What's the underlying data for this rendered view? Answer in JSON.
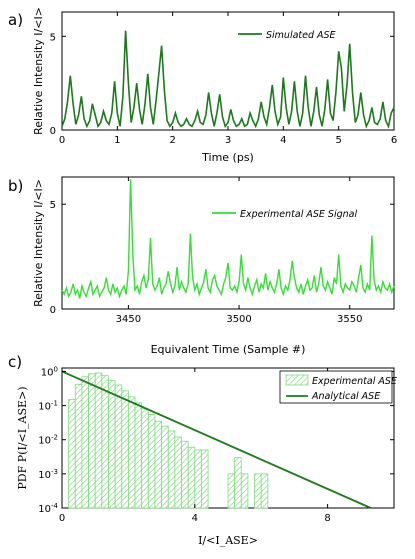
{
  "panels": [
    {
      "letter": "a)",
      "ylabel": "Relative Intensity I/<I>",
      "xlabel": "Time (ps)"
    },
    {
      "letter": "b)",
      "ylabel": "Relative Intensity I/<I>",
      "xlabel": "Equivalent Time (Sample #)"
    },
    {
      "letter": "c)",
      "ylabel": "PDF P(I/<I_ASE>)",
      "xlabel": "I/<I_ASE>"
    }
  ],
  "colors": {
    "dark_green": "#1c7a1c",
    "light_green": "#33e033",
    "hatch_green": "#7fdc7f"
  },
  "chart_data": [
    {
      "type": "line",
      "xlabel": "Time (ps)",
      "ylabel": "Relative Intensity I/<I>",
      "xlim": [
        0,
        6
      ],
      "ylim": [
        0,
        6.3
      ],
      "xticks": [
        0,
        1,
        2,
        3,
        4,
        5,
        6
      ],
      "yticks": [
        0,
        5
      ],
      "legend": "top-right",
      "series": [
        {
          "name": "Simulated ASE",
          "x": [
            0,
            0.05,
            0.1,
            0.15,
            0.2,
            0.25,
            0.3,
            0.35,
            0.4,
            0.45,
            0.5,
            0.55,
            0.6,
            0.65,
            0.7,
            0.75,
            0.8,
            0.85,
            0.9,
            0.95,
            1.0,
            1.05,
            1.1,
            1.15,
            1.2,
            1.25,
            1.3,
            1.35,
            1.4,
            1.45,
            1.5,
            1.55,
            1.6,
            1.65,
            1.7,
            1.75,
            1.8,
            1.85,
            1.9,
            1.95,
            2.0,
            2.05,
            2.1,
            2.15,
            2.2,
            2.25,
            2.3,
            2.35,
            2.4,
            2.45,
            2.5,
            2.55,
            2.6,
            2.65,
            2.7,
            2.75,
            2.8,
            2.85,
            2.9,
            2.95,
            3.0,
            3.05,
            3.1,
            3.15,
            3.2,
            3.25,
            3.3,
            3.35,
            3.4,
            3.45,
            3.5,
            3.55,
            3.6,
            3.65,
            3.7,
            3.75,
            3.8,
            3.85,
            3.9,
            3.95,
            4.0,
            4.05,
            4.1,
            4.15,
            4.2,
            4.25,
            4.3,
            4.35,
            4.4,
            4.45,
            4.5,
            4.55,
            4.6,
            4.65,
            4.7,
            4.75,
            4.8,
            4.85,
            4.9,
            4.95,
            5.0,
            5.05,
            5.1,
            5.15,
            5.2,
            5.25,
            5.3,
            5.35,
            5.4,
            5.45,
            5.5,
            5.55,
            5.6,
            5.65,
            5.7,
            5.75,
            5.8,
            5.85,
            5.9,
            5.95,
            6.0
          ],
          "y": [
            0.2,
            0.6,
            1.5,
            2.9,
            1.4,
            0.3,
            0.8,
            1.8,
            0.6,
            0.2,
            0.5,
            1.4,
            0.8,
            0.2,
            0.4,
            1.0,
            0.5,
            0.3,
            0.9,
            2.6,
            0.9,
            0.2,
            1.8,
            5.3,
            2.5,
            0.4,
            1.2,
            2.5,
            1.1,
            0.3,
            1.4,
            3.0,
            1.2,
            0.3,
            1.6,
            3.0,
            4.5,
            2.1,
            0.5,
            0.2,
            0.4,
            0.9,
            0.4,
            0.2,
            0.3,
            0.6,
            0.3,
            0.2,
            0.5,
            1.0,
            0.4,
            0.3,
            0.8,
            2.0,
            0.9,
            0.2,
            0.9,
            1.9,
            0.7,
            0.2,
            0.4,
            1.1,
            0.5,
            0.2,
            0.3,
            0.6,
            0.2,
            0.3,
            0.9,
            0.5,
            0.2,
            0.6,
            1.5,
            0.7,
            0.3,
            1.2,
            2.4,
            1.0,
            0.3,
            0.7,
            2.8,
            1.2,
            0.3,
            1.0,
            2.6,
            1.0,
            0.2,
            0.9,
            2.9,
            1.2,
            0.2,
            1.0,
            2.3,
            0.8,
            0.2,
            1.1,
            2.7,
            0.9,
            0.5,
            2.0,
            4.2,
            3.3,
            1.0,
            2.4,
            4.6,
            2.0,
            0.4,
            0.8,
            2.0,
            0.8,
            0.2,
            0.5,
            1.2,
            0.4,
            0.3,
            0.6,
            1.5,
            0.5,
            0.2,
            0.9,
            1.2
          ]
        }
      ]
    },
    {
      "type": "line",
      "xlabel": "Equivalent Time (Sample #)",
      "ylabel": "Relative Intensity I/<I>",
      "xlim": [
        3420,
        3570
      ],
      "ylim": [
        0,
        6.3
      ],
      "xticks": [
        3450,
        3500,
        3550
      ],
      "yticks": [
        0,
        5
      ],
      "legend": "top-right",
      "series": [
        {
          "name": "Experimental ASE Signal",
          "x_start": 3420,
          "x_step": 1,
          "y": [
            0.9,
            0.7,
            1.0,
            0.6,
            0.8,
            1.2,
            0.7,
            0.9,
            0.5,
            1.1,
            0.8,
            0.6,
            1.0,
            1.3,
            0.7,
            0.9,
            1.1,
            0.6,
            0.8,
            1.0,
            1.5,
            0.9,
            0.7,
            1.2,
            0.8,
            1.0,
            0.6,
            0.9,
            1.1,
            0.7,
            1.8,
            6.2,
            2.6,
            0.9,
            1.1,
            0.7,
            1.3,
            1.6,
            1.0,
            1.4,
            3.4,
            1.2,
            0.9,
            1.1,
            1.5,
            0.7,
            1.0,
            1.2,
            1.8,
            1.2,
            0.8,
            1.1,
            2.0,
            0.9,
            1.3,
            1.0,
            0.8,
            1.2,
            3.6,
            1.5,
            0.9,
            1.2,
            0.7,
            1.0,
            1.3,
            1.9,
            1.0,
            0.8,
            1.4,
            1.6,
            1.1,
            0.9,
            0.7,
            1.2,
            1.5,
            2.2,
            1.0,
            0.9,
            1.1,
            0.8,
            1.3,
            2.6,
            1.2,
            0.9,
            1.5,
            1.0,
            0.7,
            1.1,
            1.4,
            0.8,
            1.2,
            1.0,
            1.7,
            0.9,
            1.3,
            1.0,
            0.8,
            1.2,
            1.9,
            1.0,
            0.7,
            1.1,
            0.9,
            1.4,
            2.3,
            1.5,
            1.0,
            0.8,
            1.2,
            0.7,
            1.1,
            1.4,
            0.9,
            1.0,
            1.6,
            0.8,
            1.2,
            2.0,
            1.1,
            0.9,
            1.3,
            1.0,
            0.7,
            1.5,
            1.2,
            2.6,
            1.1,
            0.8,
            1.2,
            1.0,
            0.9,
            1.3,
            1.1,
            0.8,
            1.5,
            2.1,
            1.0,
            0.8,
            1.2,
            0.9,
            3.5,
            1.4,
            0.9,
            1.1,
            0.8,
            1.3,
            1.0,
            0.9,
            1.2,
            0.8,
            1.1
          ]
        }
      ]
    },
    {
      "type": "bar",
      "xlabel": "I/<I_ASE>",
      "ylabel": "PDF P(I/<I_ASE>)",
      "xlim": [
        0,
        10
      ],
      "ylim_log": [
        -4,
        0.1
      ],
      "yscale": "log",
      "xticks": [
        0,
        4,
        8
      ],
      "yticks_exp": [
        -4,
        -3,
        -2,
        -1,
        0
      ],
      "legend": "top-right",
      "histogram": {
        "name": "Experimental ASE",
        "bin_width": 0.2,
        "bins": [
          [
            0.2,
            0.15
          ],
          [
            0.4,
            0.42
          ],
          [
            0.6,
            0.7
          ],
          [
            0.8,
            0.85
          ],
          [
            1.0,
            0.9
          ],
          [
            1.2,
            0.75
          ],
          [
            1.4,
            0.55
          ],
          [
            1.6,
            0.4
          ],
          [
            1.8,
            0.27
          ],
          [
            2.0,
            0.18
          ],
          [
            2.2,
            0.12
          ],
          [
            2.4,
            0.08
          ],
          [
            2.6,
            0.055
          ],
          [
            2.8,
            0.035
          ],
          [
            3.0,
            0.025
          ],
          [
            3.2,
            0.018
          ],
          [
            3.4,
            0.012
          ],
          [
            3.6,
            0.009
          ],
          [
            3.8,
            0.006
          ],
          [
            4.0,
            0.005
          ],
          [
            4.2,
            0.005
          ],
          [
            5.0,
            0.001
          ],
          [
            5.2,
            0.003
          ],
          [
            5.4,
            0.001
          ],
          [
            5.8,
            0.001
          ],
          [
            6.0,
            0.001
          ]
        ]
      },
      "analytical": {
        "name": "Analytical ASE",
        "formula": "exp(-x)",
        "x": [
          0,
          9.3
        ],
        "y": [
          1.0,
          0.0001
        ]
      }
    }
  ]
}
